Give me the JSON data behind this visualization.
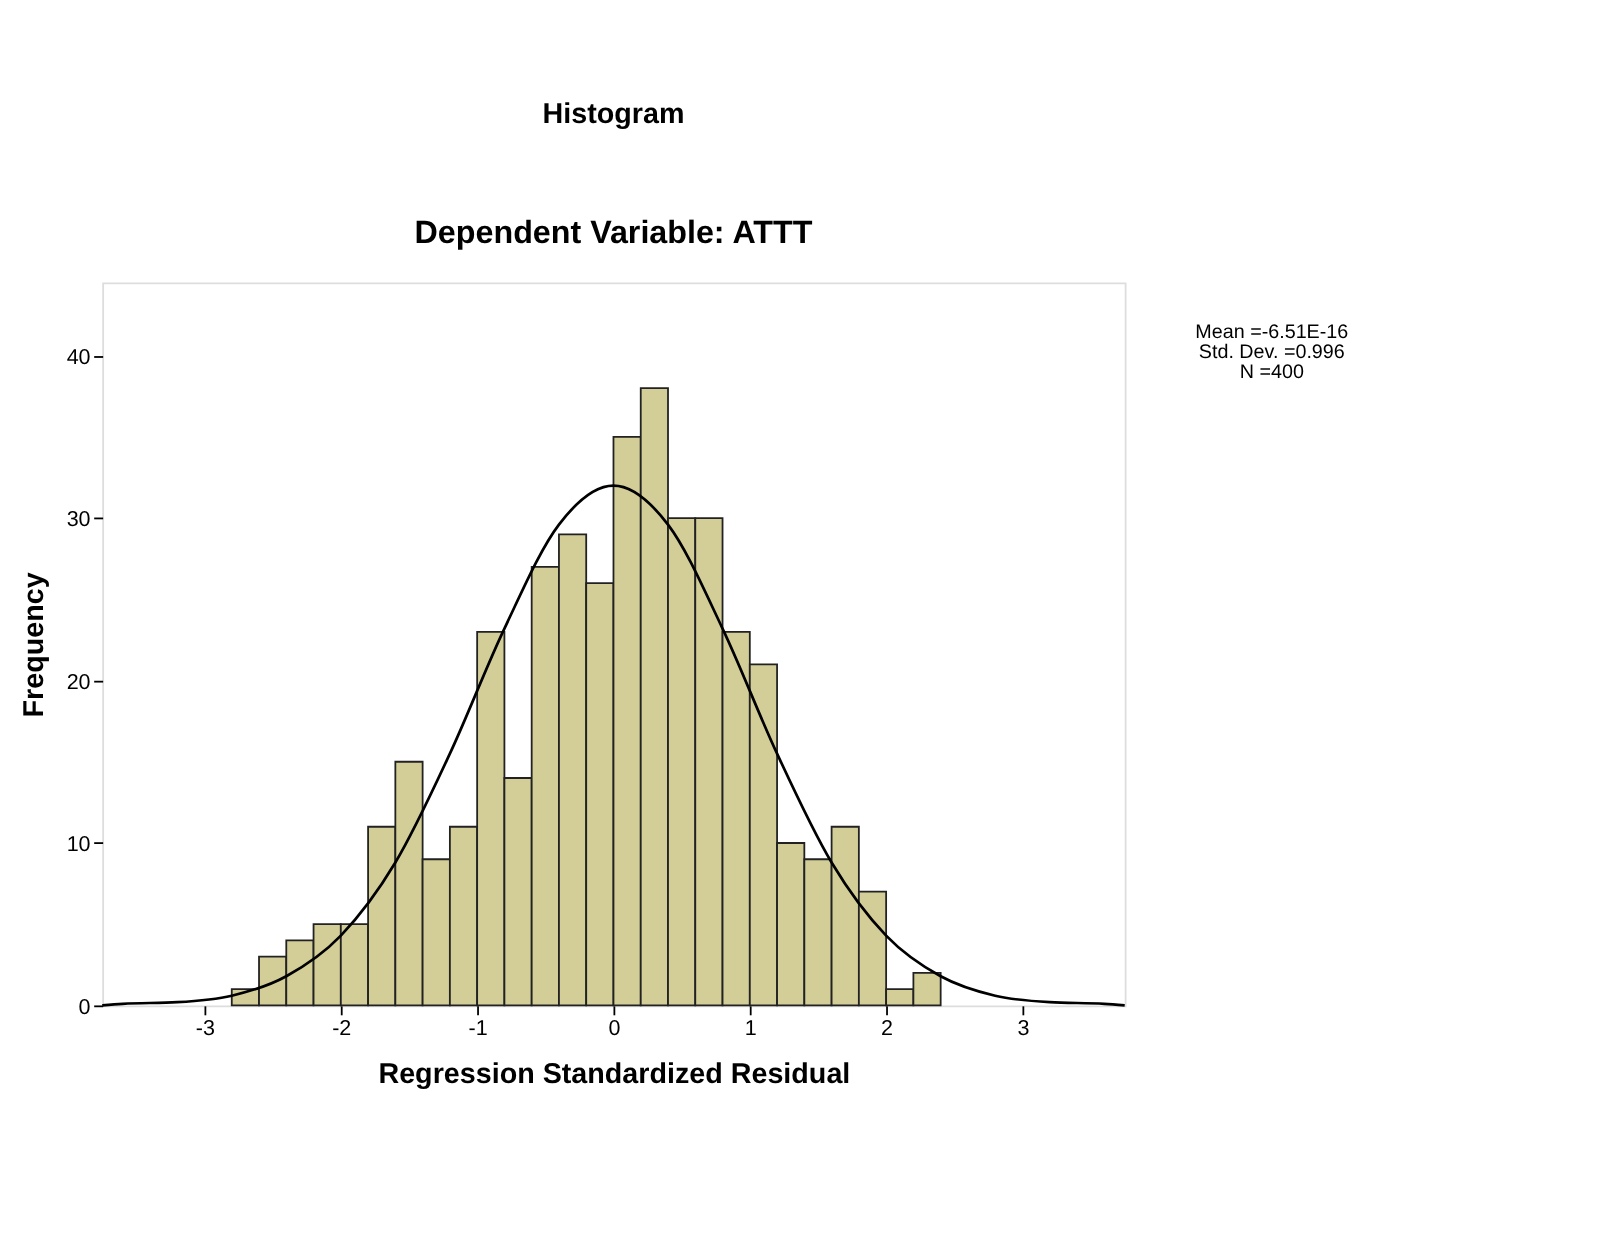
{
  "chart_data": {
    "type": "histogram",
    "title": "Histogram",
    "subtitle": "Dependent Variable: ATTT",
    "xlabel": "Regression Standardized Residual",
    "ylabel": "Frequency",
    "series": [
      {
        "color": "#d3ce97",
        "bins": [
          -2.8,
          -2.6,
          -2.4,
          -2.2,
          -2.0,
          -1.8,
          -1.6,
          -1.4,
          -1.2,
          -1.0,
          -0.8,
          -0.6,
          -0.4,
          -0.2,
          0.0,
          0.2,
          0.4,
          0.6,
          0.8,
          1.0,
          1.2,
          1.4,
          1.6,
          1.8,
          2.0,
          2.2,
          2.4
        ],
        "values": [
          1,
          3,
          4,
          5,
          5,
          11,
          15,
          9,
          11,
          23,
          14,
          27,
          29,
          26,
          35,
          38,
          30,
          30,
          23,
          21,
          10,
          9,
          11,
          7,
          1,
          2
        ]
      },
      {
        "type": "line",
        "color": "#000000",
        "x": [
          -3.75,
          -3.6,
          -3.2,
          -2.8,
          -2.4,
          -2.0,
          -1.6,
          -1.2,
          -0.8,
          -0.4,
          0.0,
          0.4,
          0.8,
          1.2,
          1.6,
          2.0,
          2.4,
          2.8,
          3.2,
          3.6,
          3.75
        ],
        "values": [
          0.0,
          0.1,
          0.2,
          0.6,
          1.8,
          4.3,
          8.8,
          15.5,
          23.2,
          29.6,
          32.0,
          29.6,
          23.2,
          15.5,
          8.8,
          4.3,
          1.8,
          0.6,
          0.2,
          0.1,
          0.0
        ]
      }
    ],
    "xlim": [
      -3.75,
      3.75
    ],
    "xticks": [
      -3,
      -2,
      -1,
      0,
      1,
      2,
      3
    ],
    "ylim": [
      0,
      44.5
    ],
    "yticks": [
      0,
      10,
      20,
      30,
      40
    ],
    "grid": false,
    "annotations": [
      "Mean =-6.51E-16",
      "Std. Dev. =0.996",
      "N =400"
    ]
  }
}
